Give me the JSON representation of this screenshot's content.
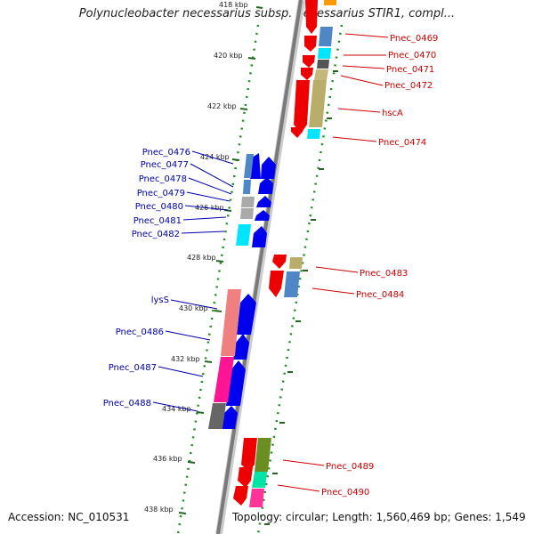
{
  "title": "Polynucleobacter necessarius subsp. necessarius STIR1, compl...",
  "footer": {
    "accession": "Accession: NC_010531",
    "summary": "Topology: circular; Length: 1,560,469 bp; Genes: 1,549"
  },
  "ticks": [
    "418 kbp",
    "420 kbp",
    "422 kbp",
    "424 kbp",
    "426 kbp",
    "428 kbp",
    "430 kbp",
    "432 kbp",
    "434 kbp",
    "436 kbp",
    "438 kbp"
  ],
  "genes_forward": [
    "Pnec_0469",
    "Pnec_0470",
    "Pnec_0471",
    "Pnec_0472",
    "hscA",
    "Pnec_0474",
    "Pnec_0483",
    "Pnec_0484",
    "Pnec_0489",
    "Pnec_0490"
  ],
  "genes_reverse": [
    "Pnec_0476",
    "Pnec_0477",
    "Pnec_0478",
    "Pnec_0479",
    "Pnec_0480",
    "Pnec_0481",
    "Pnec_0482",
    "lysS",
    "Pnec_0486",
    "Pnec_0487",
    "Pnec_0488"
  ],
  "colors": {
    "forward_strand": "#ee0000",
    "reverse_strand": "#0000ee",
    "backbone": "#888888",
    "tick_dots": "#228822",
    "forward_label": "#cc0000",
    "reverse_label": "#0000aa"
  }
}
